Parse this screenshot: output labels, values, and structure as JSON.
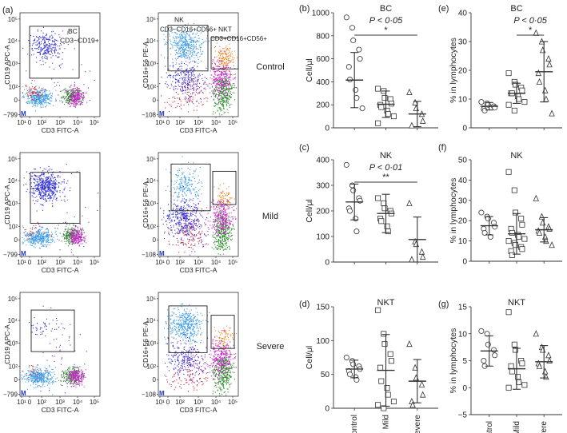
{
  "figure": {
    "panel_a": {
      "label": "(a)",
      "rows": [
        {
          "condition": "Control",
          "left": {
            "gate_label": "BC",
            "gate_sub": "CD3−CD19+",
            "ylabel": "CD19 APC-A",
            "xlabel": "CD3 FITC-A"
          },
          "right": {
            "gate1_label": "NK",
            "gate1_sub": "CD3−CD16+CD56+",
            "gate2_label": "NKT",
            "gate2_sub": "CD3+CD16+CD56+",
            "ylabel": "CD16+56 PE-A",
            "xlabel": "CD3 FITC-A"
          }
        },
        {
          "condition": "Mild",
          "left": {
            "ylabel": "CD19 APC-A",
            "xlabel": "CD3 FITC-A"
          },
          "right": {
            "ylabel": "CD16+56 PE-A",
            "xlabel": "CD3 FITC-A"
          }
        },
        {
          "condition": "Severe",
          "left": {
            "ylabel": "CD19 APC-A",
            "xlabel": "CD3 FITC-A"
          },
          "right": {
            "ylabel": "CD16+56 PE-A",
            "xlabel": "CD3 FITC-A"
          }
        }
      ],
      "left_yticks": [
        "10⁵",
        "10⁴",
        "10³",
        "10²",
        "0",
        "−799"
      ],
      "right_yticks": [
        "10⁵",
        "10⁴",
        "10³",
        "10²",
        "0",
        "−108"
      ],
      "xticks": [
        "10¹",
        "0",
        "10²",
        "10³",
        "10⁴",
        "10⁵"
      ],
      "corner_mark": "M",
      "colors": {
        "blue": "#2a2ad6",
        "lightblue": "#3c9be6",
        "red": "#e02020",
        "green": "#1f8a1f",
        "magenta": "#d81ed8",
        "orange": "#f07d1a",
        "purple": "#6a2aa8"
      }
    }
  },
  "chart_data": [
    {
      "id": "b",
      "label": "(b)",
      "type": "scatter",
      "title": "BC",
      "ylabel": "Cell/μl",
      "ylim": [
        0,
        1000
      ],
      "yticks": [
        0,
        200,
        400,
        600,
        800,
        1000
      ],
      "categories": [
        "Control",
        "Mild",
        "Severe"
      ],
      "show_xlabels": false,
      "annotation": {
        "text": "P < 0·05",
        "stars": "*",
        "from": 0,
        "to": 2
      },
      "series": [
        {
          "name": "Control",
          "marker": "circle",
          "mean": 415,
          "sd": 240,
          "values": [
            960,
            870,
            760,
            680,
            600,
            530,
            420,
            330,
            260,
            170
          ]
        },
        {
          "name": "Mild",
          "marker": "square",
          "mean": 205,
          "sd": 115,
          "values": [
            340,
            320,
            260,
            250,
            210,
            200,
            180,
            150,
            120,
            100,
            40
          ]
        },
        {
          "name": "Severe",
          "marker": "triangle",
          "mean": 120,
          "sd": 110,
          "values": [
            310,
            220,
            170,
            120,
            60,
            20
          ]
        }
      ]
    },
    {
      "id": "c",
      "label": "(c)",
      "type": "scatter",
      "title": "NK",
      "ylabel": "Cell/μl",
      "ylim": [
        0,
        400
      ],
      "yticks": [
        0,
        100,
        200,
        300,
        400
      ],
      "categories": [
        "Control",
        "Mild",
        "Severe"
      ],
      "show_xlabels": false,
      "annotation": {
        "text": "P < 0·01",
        "stars": "**",
        "from": 0,
        "to": 2
      },
      "series": [
        {
          "name": "Control",
          "marker": "circle",
          "mean": 235,
          "sd": 70,
          "values": [
            380,
            300,
            280,
            250,
            240,
            210,
            200,
            170,
            120
          ]
        },
        {
          "name": "Mild",
          "marker": "square",
          "mean": 190,
          "sd": 75,
          "values": [
            250,
            230,
            210,
            200,
            190,
            170,
            160,
            140,
            120
          ]
        },
        {
          "name": "Severe",
          "marker": "triangle",
          "mean": 88,
          "sd": 88,
          "values": [
            230,
            80,
            70,
            40,
            20,
            10
          ]
        }
      ]
    },
    {
      "id": "d",
      "label": "(d)",
      "type": "scatter",
      "title": "NKT",
      "ylabel": "Cell/μl",
      "ylim": [
        0,
        150
      ],
      "yticks": [
        0,
        50,
        100,
        150
      ],
      "categories": [
        "Control",
        "Mild",
        "Severe"
      ],
      "show_xlabels": true,
      "series": [
        {
          "name": "Control",
          "marker": "circle",
          "mean": 58,
          "sd": 13,
          "values": [
            75,
            70,
            65,
            62,
            58,
            55,
            50,
            46,
            42
          ]
        },
        {
          "name": "Mild",
          "marker": "square",
          "mean": 56,
          "sd": 53,
          "values": [
            145,
            110,
            95,
            80,
            70,
            60,
            40,
            30,
            20,
            10,
            5,
            0
          ]
        },
        {
          "name": "Severe",
          "marker": "triangle",
          "mean": 40,
          "sd": 32,
          "values": [
            95,
            60,
            45,
            35,
            20,
            10,
            5
          ]
        }
      ]
    },
    {
      "id": "e",
      "label": "(e)",
      "type": "scatter",
      "title": "BC",
      "ylabel": "% in lymphocytes",
      "ylim": [
        0,
        40
      ],
      "yticks": [
        0,
        10,
        20,
        30,
        40
      ],
      "categories": [
        "Control",
        "Mild",
        "Severe"
      ],
      "show_xlabels": false,
      "annotation": {
        "text": "P < 0·05",
        "stars": "*",
        "from": 1,
        "to": 2
      },
      "series": [
        {
          "name": "Control",
          "marker": "circle",
          "mean": 7.5,
          "sd": 1.3,
          "values": [
            9,
            8.5,
            8,
            7.5,
            7,
            6.5,
            6
          ]
        },
        {
          "name": "Mild",
          "marker": "square",
          "mean": 12,
          "sd": 3.5,
          "values": [
            19,
            16,
            15,
            14,
            13,
            12,
            12,
            11,
            10,
            9,
            8,
            6
          ]
        },
        {
          "name": "Severe",
          "marker": "triangle",
          "mean": 19.5,
          "sd": 10.5,
          "values": [
            33,
            30,
            27,
            24,
            22,
            19,
            16,
            13,
            10,
            5
          ]
        }
      ]
    },
    {
      "id": "f",
      "label": "(f)",
      "type": "scatter",
      "title": "NK",
      "ylabel": "% in lymphocytes",
      "ylim": [
        0,
        50
      ],
      "yticks": [
        0,
        10,
        20,
        30,
        40,
        50
      ],
      "categories": [
        "Control",
        "Mild",
        "Severe"
      ],
      "show_xlabels": false,
      "series": [
        {
          "name": "Control",
          "marker": "circle",
          "mean": 17.5,
          "sd": 4.5,
          "values": [
            24,
            22,
            21,
            19,
            17,
            16,
            14,
            12
          ]
        },
        {
          "name": "Mild",
          "marker": "square",
          "mean": 13.5,
          "sd": 10,
          "values": [
            44,
            35,
            24,
            21,
            18,
            16,
            14,
            13,
            12,
            11,
            10,
            9,
            8,
            7,
            6,
            5,
            3
          ]
        },
        {
          "name": "Severe",
          "marker": "triangle",
          "mean": 15.5,
          "sd": 6,
          "values": [
            31,
            22,
            19,
            17,
            16,
            15,
            14,
            12,
            10,
            8
          ]
        }
      ]
    },
    {
      "id": "g",
      "label": "(g)",
      "type": "scatter",
      "title": "NKT",
      "ylabel": "% in lymphocytes",
      "ylim": [
        -5,
        15
      ],
      "yticks": [
        -5,
        0,
        5,
        10,
        15
      ],
      "categories": [
        "Control",
        "Mild",
        "Severe"
      ],
      "show_xlabels": true,
      "series": [
        {
          "name": "Control",
          "marker": "circle",
          "mean": 6.8,
          "sd": 2.8,
          "values": [
            10.5,
            10,
            8,
            7,
            6,
            5,
            4
          ]
        },
        {
          "name": "Mild",
          "marker": "square",
          "mean": 3.5,
          "sd": 3.8,
          "values": [
            14,
            8,
            7,
            5,
            4.5,
            4,
            3,
            2,
            1,
            0.5,
            0
          ]
        },
        {
          "name": "Severe",
          "marker": "triangle",
          "mean": 4.8,
          "sd": 3,
          "values": [
            10,
            7.5,
            7,
            6,
            5,
            4.5,
            4,
            3,
            2
          ]
        }
      ]
    }
  ]
}
